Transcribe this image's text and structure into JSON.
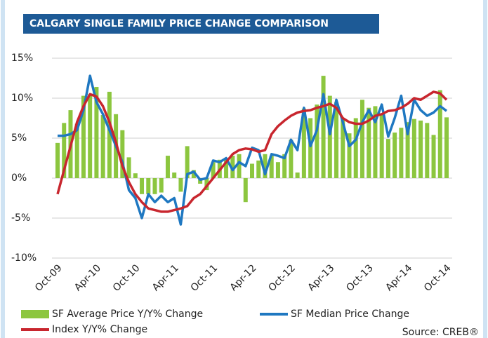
{
  "chart_data": {
    "type": "combo",
    "title": "CALGARY SINGLE FAMILY PRICE CHANGE COMPARISON",
    "source": "Source: CREB®",
    "categories": [
      "Oct-09",
      null,
      null,
      null,
      null,
      null,
      "Apr-10",
      null,
      null,
      null,
      null,
      null,
      "Oct-10",
      null,
      null,
      null,
      null,
      null,
      "Apr-11",
      null,
      null,
      null,
      null,
      null,
      "Oct-11",
      null,
      null,
      null,
      null,
      null,
      "Apr-12",
      null,
      null,
      null,
      null,
      null,
      "Oct-12",
      null,
      null,
      null,
      null,
      null,
      "Apr-13",
      null,
      null,
      null,
      null,
      null,
      "Oct-13",
      null,
      null,
      null,
      null,
      null,
      "Apr-14",
      null,
      null,
      null,
      null,
      null,
      "Oct-14"
    ],
    "ylim": [
      -10,
      15
    ],
    "yticks": [
      {
        "value": -10,
        "label": "-10%"
      },
      {
        "value": -5,
        "label": "-5%"
      },
      {
        "value": 0,
        "label": "0%"
      },
      {
        "value": 5,
        "label": "5%"
      },
      {
        "value": 10,
        "label": "10%"
      },
      {
        "value": 15,
        "label": "15%"
      }
    ],
    "grid": true,
    "legend": "bottom",
    "series": [
      {
        "name": "SF Average Price Y/Y% Change",
        "type": "bar",
        "color": "#8cc63f",
        "values": [
          4.4,
          6.9,
          8.5,
          6.8,
          10.3,
          10.5,
          11.4,
          7.9,
          10.8,
          8,
          6,
          2.6,
          0.6,
          -2,
          -2,
          -2,
          -1.8,
          2.8,
          0.7,
          -1.7,
          4,
          1,
          -0.7,
          -1.5,
          2,
          2.3,
          2.5,
          2.8,
          3,
          -3,
          1.8,
          2.2,
          3,
          2.8,
          2,
          3,
          4.8,
          0.7,
          8.7,
          7.5,
          9.2,
          12.8,
          10.3,
          9.5,
          7.5,
          5.6,
          7.5,
          9.8,
          8.8,
          9,
          7.9,
          4.9,
          5.7,
          6.3,
          7,
          7.4,
          7.2,
          6.9,
          5.4,
          11,
          7.6
        ]
      },
      {
        "name": "SF Median Price Change",
        "type": "line",
        "color": "#1f78c1",
        "values": [
          5.3,
          5.3,
          5.5,
          6,
          8.5,
          12.8,
          9.5,
          8,
          6,
          4,
          2,
          -1.5,
          -2.5,
          -5,
          -2,
          -3,
          -2.2,
          -3,
          -2.5,
          -5.8,
          0.5,
          0.8,
          -0.2,
          0,
          2.2,
          2,
          2.5,
          1,
          2,
          1.5,
          3.8,
          3.5,
          0.5,
          3,
          2.8,
          2.5,
          4.8,
          3.5,
          8.8,
          4,
          6,
          10.5,
          5.5,
          9.8,
          7,
          4,
          4.8,
          7,
          8.5,
          7,
          9.2,
          5.2,
          7.5,
          10.3,
          5.5,
          9.8,
          8.5,
          7.8,
          8.2,
          9,
          8.4
        ]
      },
      {
        "name": "Index Y/Y% Change",
        "type": "line",
        "color": "#c8262e",
        "values": [
          -2,
          1,
          4,
          7,
          9,
          10.5,
          10.2,
          9,
          7,
          4.5,
          1.5,
          -0.5,
          -2,
          -3,
          -3.8,
          -4,
          -4.2,
          -4.2,
          -4,
          -3.8,
          -3.5,
          -2.5,
          -2,
          -1,
          0,
          1,
          2,
          3,
          3.5,
          3.7,
          3.6,
          3.3,
          3.5,
          5.5,
          6.5,
          7.2,
          7.8,
          8.2,
          8.4,
          8.5,
          8.8,
          9,
          9.3,
          8.8,
          7.5,
          7,
          6.8,
          6.8,
          7.2,
          7.8,
          8,
          8.4,
          8.5,
          8.8,
          9.3,
          10,
          9.8,
          10.3,
          10.8,
          10.6,
          9.8
        ]
      }
    ]
  }
}
